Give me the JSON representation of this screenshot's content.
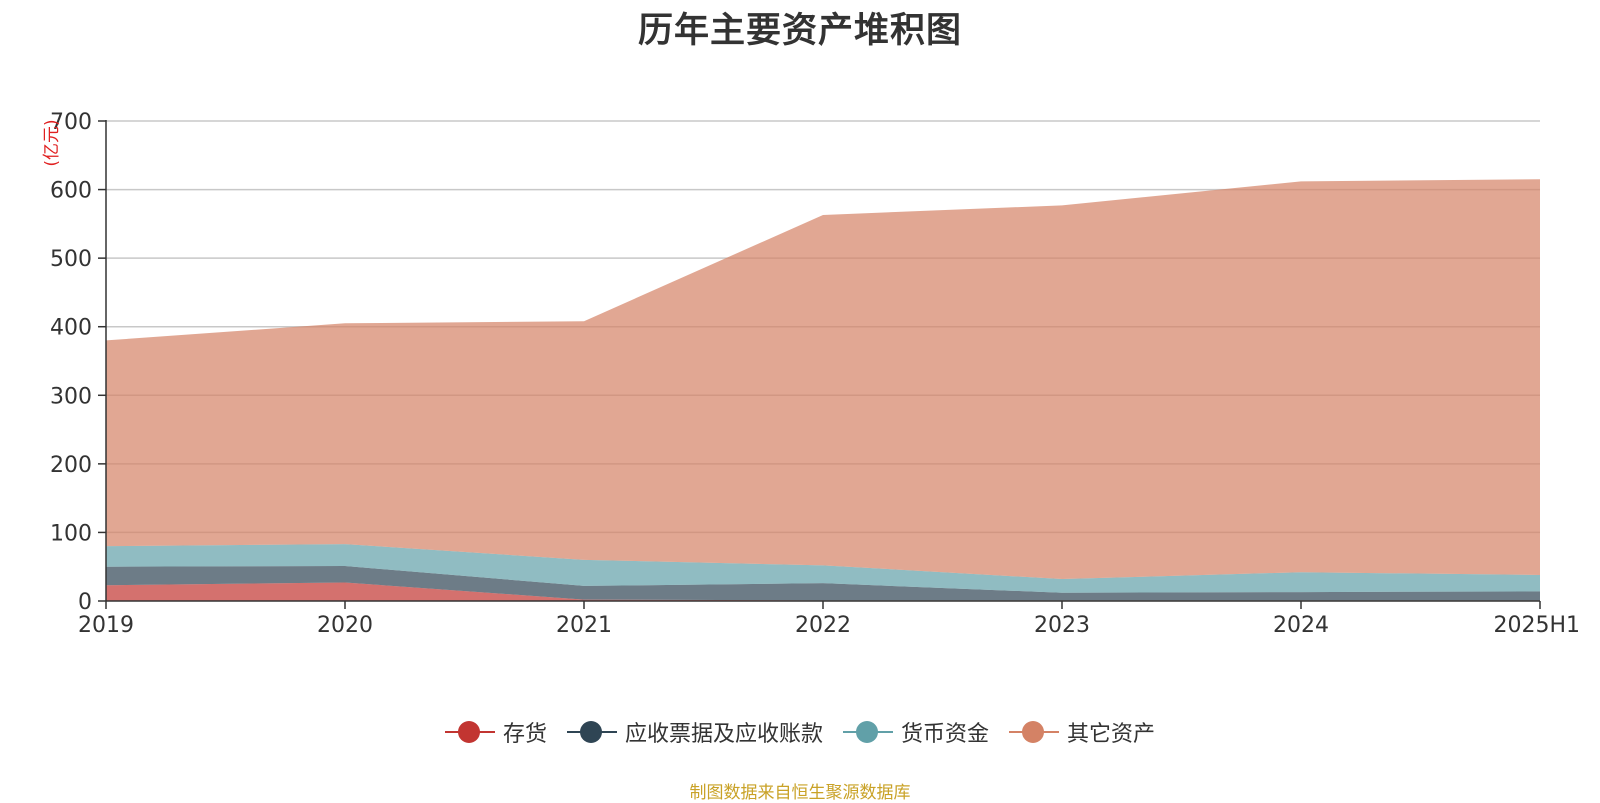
{
  "chart_data": {
    "type": "area",
    "stacked": true,
    "title": "历年主要资产堆积图",
    "ylabel": "(亿元)",
    "xlabel": "",
    "categories": [
      "2019",
      "2020",
      "2021",
      "2022",
      "2023",
      "2024",
      "2025H1"
    ],
    "ylim": [
      0,
      700
    ],
    "yticks": [
      0,
      100,
      200,
      300,
      400,
      500,
      600,
      700
    ],
    "grid": true,
    "legend_position": "bottom",
    "series": [
      {
        "name": "存货",
        "values": [
          23,
          27,
          2,
          1,
          1,
          1,
          1
        ],
        "color": "#c23531"
      },
      {
        "name": "应收票据及应收账款",
        "values": [
          27,
          24,
          20,
          25,
          11,
          12,
          13
        ],
        "color": "#2f4554"
      },
      {
        "name": "货币资金",
        "values": [
          30,
          32,
          38,
          26,
          20,
          29,
          24
        ],
        "color": "#61a0a8"
      },
      {
        "name": "其它资产",
        "values": [
          300,
          322,
          348,
          511,
          545,
          570,
          577
        ],
        "color": "#d48265"
      }
    ],
    "source_note": "制图数据来自恒生聚源数据库"
  }
}
